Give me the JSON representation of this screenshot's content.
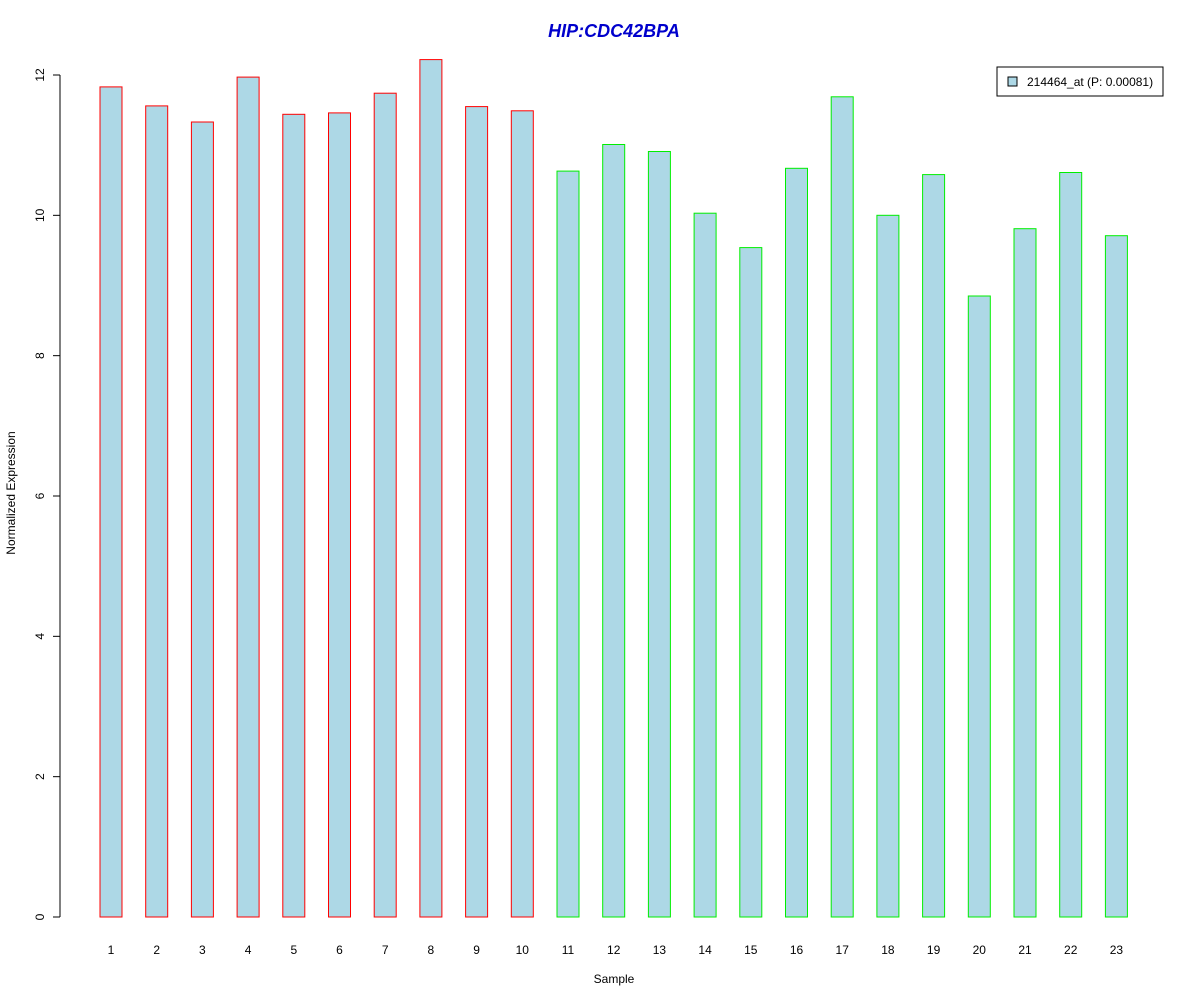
{
  "chart_data": {
    "type": "bar",
    "title": "HIP:CDC42BPA",
    "xlabel": "Sample",
    "ylabel": "Normalized Expression",
    "categories": [
      "1",
      "2",
      "3",
      "4",
      "5",
      "6",
      "7",
      "8",
      "9",
      "10",
      "11",
      "12",
      "13",
      "14",
      "15",
      "16",
      "17",
      "18",
      "19",
      "20",
      "21",
      "22",
      "23"
    ],
    "series": [
      {
        "name": "214464_at (P: 0.00081)",
        "values": [
          11.83,
          11.56,
          11.33,
          11.97,
          11.44,
          11.46,
          11.74,
          12.22,
          11.55,
          11.49,
          10.63,
          11.01,
          10.91,
          10.03,
          9.54,
          10.67,
          11.69,
          10.0,
          10.58,
          8.85,
          9.81,
          10.61,
          9.71
        ]
      }
    ],
    "group_of_bar": [
      "a",
      "a",
      "a",
      "a",
      "a",
      "a",
      "a",
      "a",
      "a",
      "a",
      "b",
      "b",
      "b",
      "b",
      "b",
      "b",
      "b",
      "b",
      "b",
      "b",
      "b",
      "b",
      "b"
    ],
    "ylim": [
      0,
      12
    ],
    "yticks": [
      0,
      2,
      4,
      6,
      8,
      10,
      12
    ],
    "grid": false,
    "legend_position": "top-right",
    "colors": {
      "title": "#0000CC",
      "bar_fill": "#ADD8E6",
      "group_a_border": "#FF0000",
      "group_b_border": "#00EE00",
      "axis": "#000000"
    }
  }
}
